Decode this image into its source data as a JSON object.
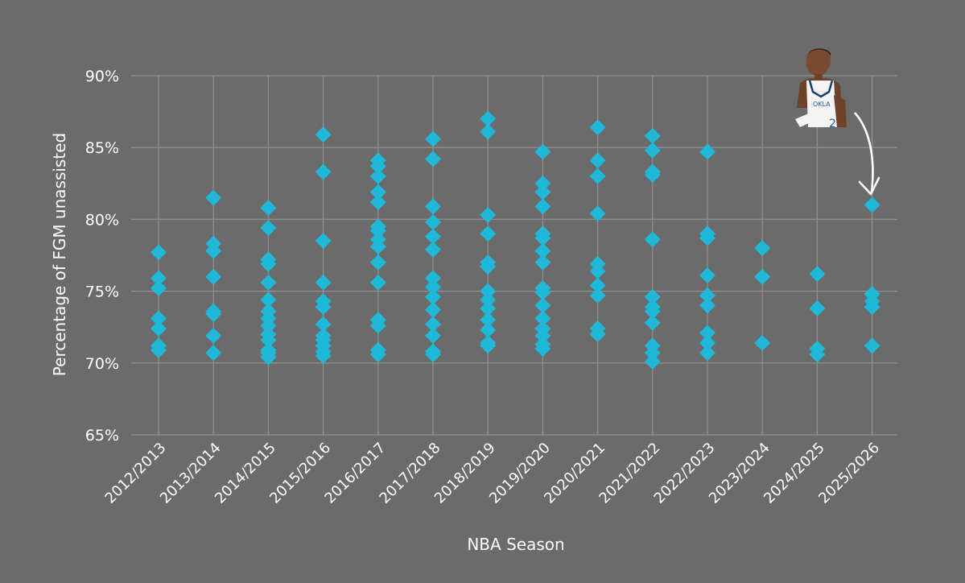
{
  "chart_data": {
    "type": "scatter",
    "xlabel": "NBA Season",
    "ylabel": "Percentage of FGM unassisted",
    "ylim": [
      65,
      90
    ],
    "yticks": [
      "65%",
      "70%",
      "75%",
      "80%",
      "85%",
      "90%"
    ],
    "grid": true,
    "marker": "diamond",
    "colors": {
      "background": "#6b6b6b",
      "marker": "#1fb8d8",
      "grid": "#8f8f8f",
      "text": "#ffffff"
    },
    "categories": [
      "2012/2013",
      "2013/2014",
      "2014/2015",
      "2015/2016",
      "2016/2017",
      "2017/2018",
      "2018/2019",
      "2019/2020",
      "2020/2021",
      "2021/2022",
      "2022/2023",
      "2023/2024",
      "2024/2025",
      "2025/2026"
    ],
    "series": [
      {
        "values": [
          [
            77.7,
            75.9,
            75.2,
            73.1,
            72.4,
            71.2,
            70.9
          ],
          [
            81.5,
            78.3,
            77.8,
            76.0,
            73.6,
            73.4,
            71.9,
            70.7
          ],
          [
            80.8,
            79.4,
            77.2,
            76.9,
            75.6,
            74.4,
            73.6,
            73.1,
            72.6,
            72.0,
            71.6,
            70.9,
            70.7,
            70.4
          ],
          [
            85.9,
            83.3,
            78.5,
            75.6,
            74.3,
            73.9,
            72.7,
            71.9,
            71.6,
            71.2,
            70.8,
            70.5
          ],
          [
            84.1,
            83.7,
            83.0,
            81.9,
            81.2,
            79.5,
            79.2,
            78.6,
            78.1,
            77.0,
            75.6,
            73.0,
            72.6,
            70.9,
            70.6
          ],
          [
            85.6,
            84.2,
            80.9,
            79.8,
            78.8,
            77.9,
            75.9,
            75.3,
            74.6,
            73.7,
            72.7,
            71.9,
            70.8,
            70.6
          ],
          [
            87.0,
            86.1,
            80.3,
            79.0,
            77.0,
            76.7,
            75.0,
            74.4,
            73.8,
            73.0,
            72.3,
            71.4,
            71.2
          ],
          [
            84.7,
            82.5,
            81.9,
            80.9,
            79.0,
            78.7,
            77.8,
            77.0,
            75.2,
            74.9,
            74.0,
            73.1,
            72.4,
            71.9,
            71.3,
            71.0
          ],
          [
            86.4,
            84.1,
            83.0,
            80.4,
            76.9,
            76.4,
            75.4,
            74.7,
            72.4,
            72.0
          ],
          [
            85.8,
            84.8,
            83.3,
            83.1,
            78.6,
            74.6,
            73.9,
            73.6,
            72.8,
            71.2,
            70.7,
            70.1
          ],
          [
            84.7,
            79.0,
            78.7,
            76.1,
            74.7,
            74.0,
            72.1,
            71.4,
            70.7
          ],
          [
            78.0,
            76.0,
            71.4
          ],
          [
            76.2,
            73.8,
            71.0,
            70.6
          ],
          [
            81.0,
            74.8,
            74.3,
            73.9,
            71.2
          ]
        ]
      }
    ]
  }
}
